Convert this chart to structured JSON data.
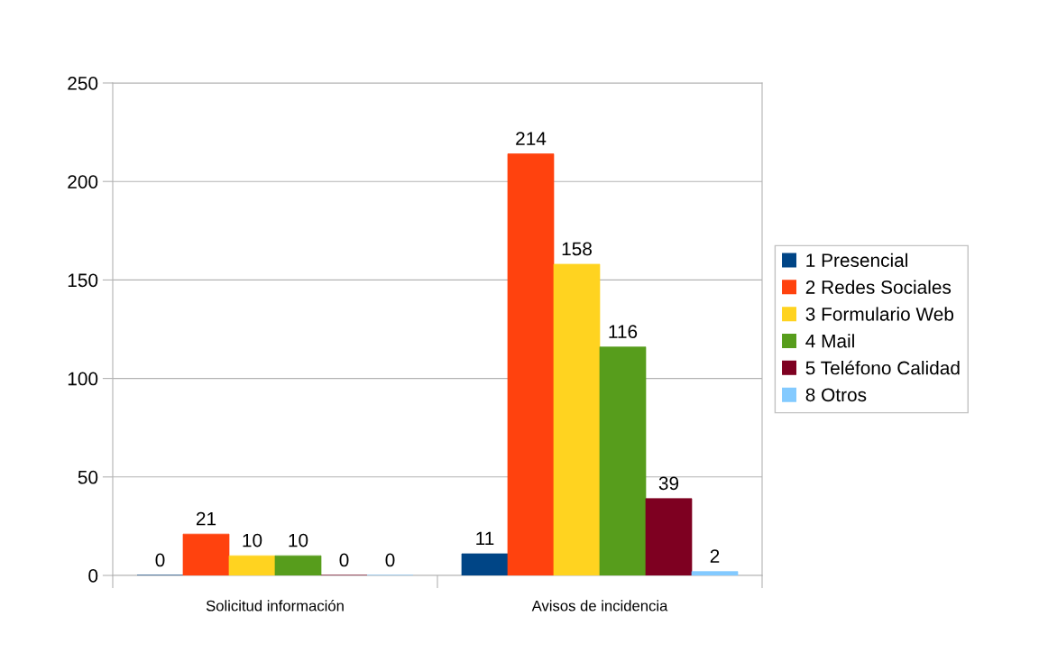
{
  "chart_data": {
    "type": "bar",
    "categories": [
      "Solicitud información",
      "Avisos de incidencia"
    ],
    "series": [
      {
        "name": "1 Presencial",
        "color": "#004586",
        "values": [
          0,
          11
        ]
      },
      {
        "name": "2 Redes Sociales",
        "color": "#ff420e",
        "values": [
          21,
          214
        ]
      },
      {
        "name": "3 Formulario Web",
        "color": "#ffd320",
        "values": [
          10,
          158
        ]
      },
      {
        "name": "4 Mail",
        "color": "#579d1c",
        "values": [
          10,
          116
        ]
      },
      {
        "name": "5 Teléfono Calidad",
        "color": "#7e0021",
        "values": [
          0,
          39
        ]
      },
      {
        "name": "8 Otros",
        "color": "#83caff",
        "values": [
          0,
          2
        ]
      }
    ],
    "ylim": [
      0,
      250
    ],
    "yticks": [
      0,
      50,
      100,
      150,
      200,
      250
    ],
    "grid": "y",
    "legend": "right",
    "data_labels": true
  }
}
